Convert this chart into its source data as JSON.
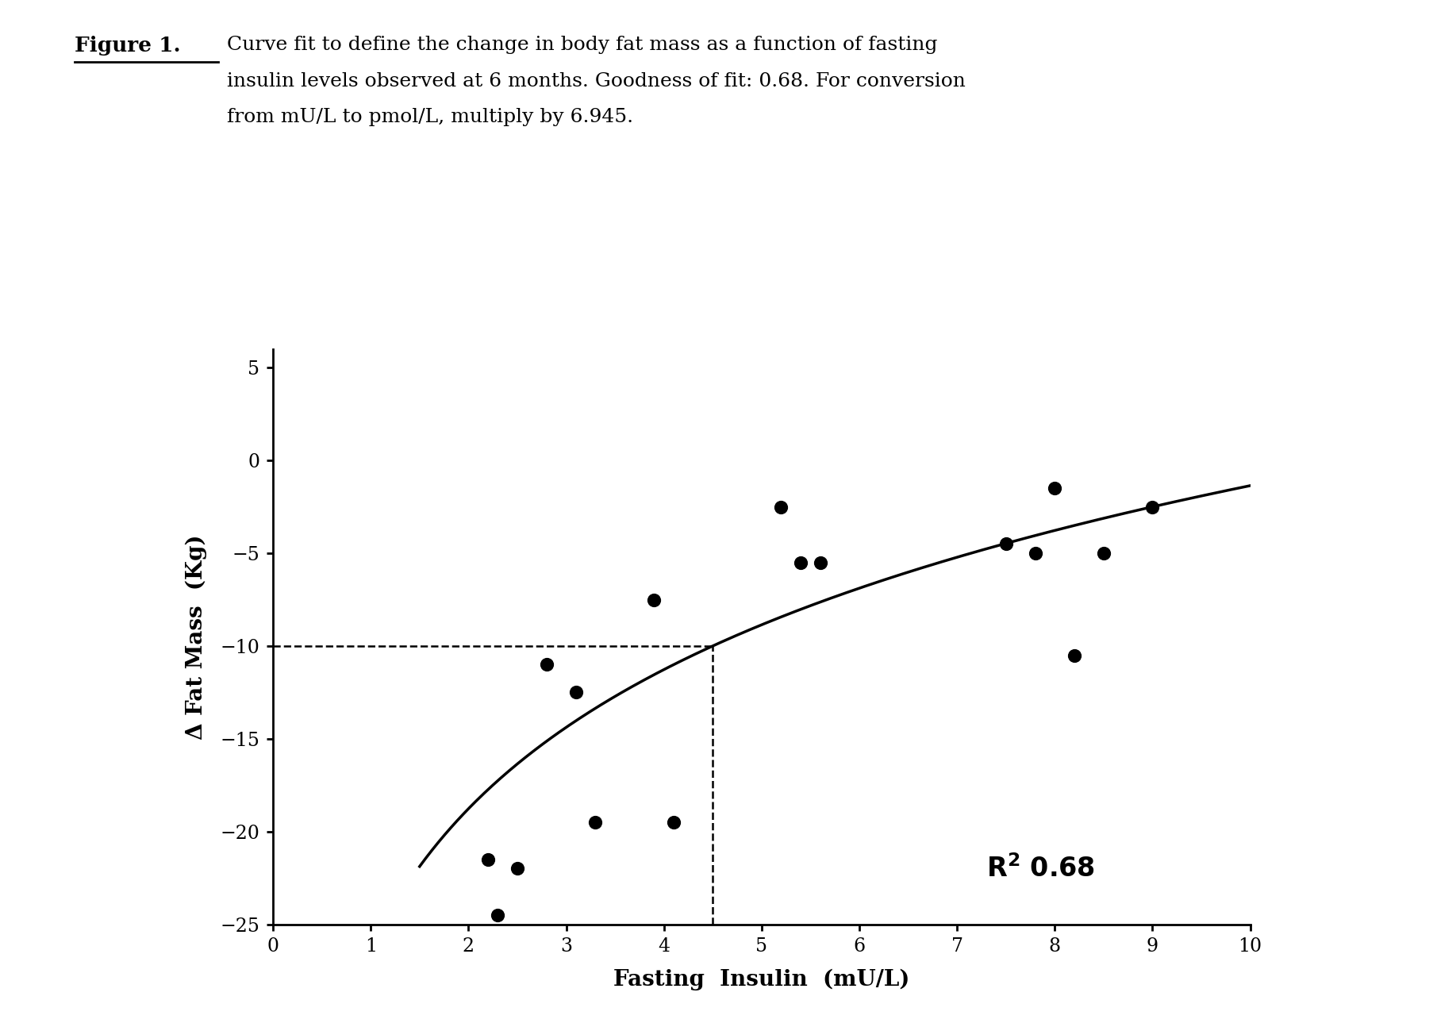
{
  "scatter_x": [
    2.2,
    2.3,
    2.5,
    2.8,
    3.1,
    3.3,
    3.9,
    4.1,
    5.2,
    5.4,
    5.6,
    7.5,
    7.8,
    8.0,
    8.2,
    8.5,
    9.0
  ],
  "scatter_y": [
    -21.5,
    -24.5,
    -22.0,
    -11.0,
    -12.5,
    -19.5,
    -7.5,
    -19.5,
    -2.5,
    -5.5,
    -5.5,
    -4.5,
    -5.0,
    -1.5,
    -10.5,
    -5.0,
    -2.5
  ],
  "log_a": 10.82,
  "log_c": -26.27,
  "curve_x_start": 1.5,
  "curve_x_end": 10.0,
  "dashed_x": 4.5,
  "dashed_y": -10.0,
  "xlim": [
    0,
    10
  ],
  "ylim": [
    -25,
    6
  ],
  "xticks": [
    0,
    1,
    2,
    3,
    4,
    5,
    6,
    7,
    8,
    9,
    10
  ],
  "yticks": [
    5,
    0,
    -5,
    -10,
    -15,
    -20,
    -25
  ],
  "xlabel": "Fasting  Insulin  (mU/L)",
  "ylabel": "Δ Fat Mass  (Kg)",
  "r2_x": 7.3,
  "r2_y": -22.0,
  "figure_label": "Figure 1.",
  "caption_line1": "Curve fit to define the change in body fat mass as a function of fasting",
  "caption_line2": "insulin levels observed at 6 months. Goodness of fit: 0.68. For conversion",
  "caption_line3": "from mU/L to pmol/L, multiply by 6.945.",
  "background_color": "#ffffff",
  "scatter_color": "#000000",
  "curve_color": "#000000",
  "dashed_color": "#000000"
}
